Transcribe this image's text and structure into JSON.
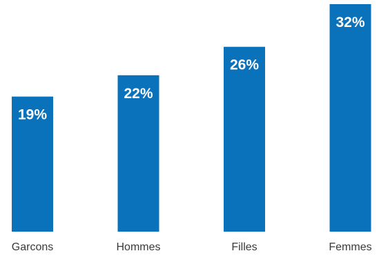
{
  "chart_data": {
    "type": "bar",
    "categories": [
      "Garcons",
      "Hommes",
      "Filles",
      "Femmes"
    ],
    "values": [
      19,
      22,
      26,
      32
    ],
    "data_labels": [
      "19%",
      "22%",
      "26%",
      "32%"
    ],
    "title": "",
    "xlabel": "",
    "ylabel": "",
    "ylim": [
      0,
      32
    ],
    "grid": false,
    "legend": "none",
    "bar_color": "#0a71bb",
    "label_color": "#ffffff",
    "category_label_color": "#3a3a3a"
  }
}
